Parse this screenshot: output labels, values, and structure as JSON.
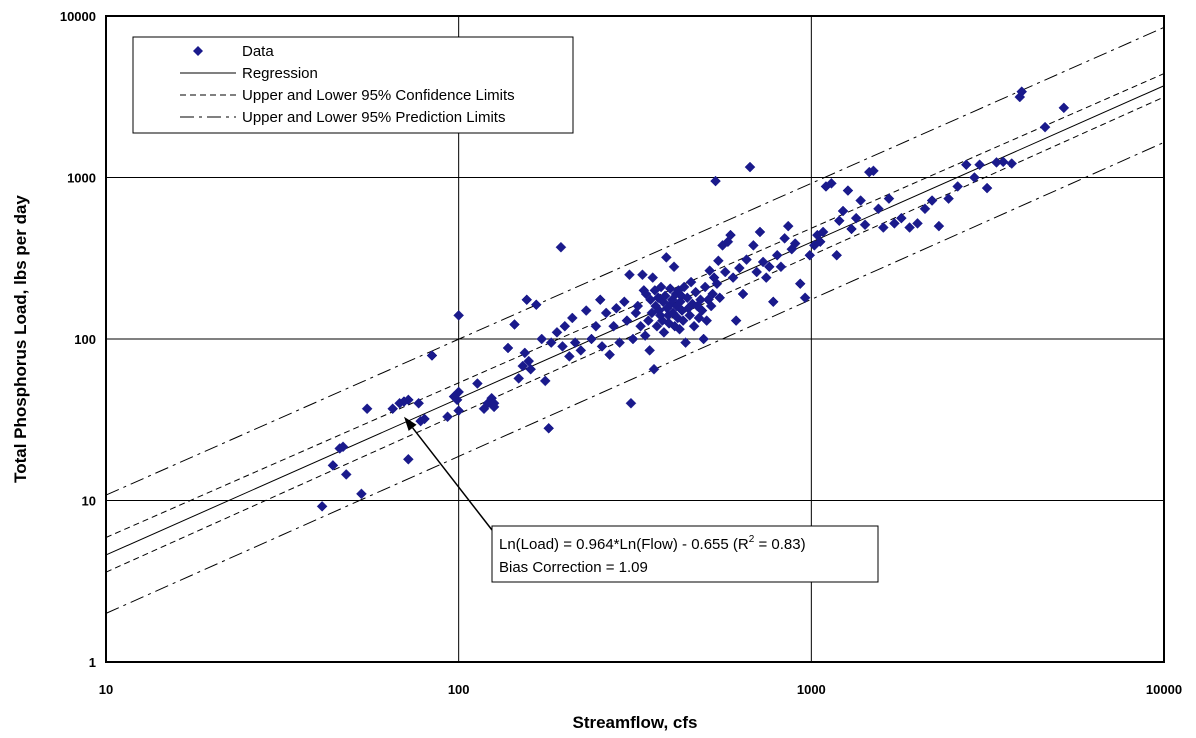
{
  "chart_data": {
    "type": "scatter",
    "title": "",
    "xlabel": "Streamflow, cfs",
    "ylabel": "Total Phosphorus Load, lbs per day",
    "x_scale": "log",
    "y_scale": "log",
    "xlim": [
      10,
      10000
    ],
    "ylim": [
      1,
      10000
    ],
    "x_ticks": [
      "10",
      "100",
      "1000",
      "10000"
    ],
    "y_ticks": [
      "1",
      "10",
      "100",
      "1000",
      "10000"
    ],
    "grid": "major",
    "legend_position": "top-left",
    "legend": [
      {
        "label": "Data",
        "style": "marker"
      },
      {
        "label": "Regression",
        "style": "solid"
      },
      {
        "label": "Upper and Lower 95% Confidence Limits",
        "style": "short-dash"
      },
      {
        "label": "Upper and Lower 95% Prediction Limits",
        "style": "long-dash"
      }
    ],
    "marker_color": "#1a1a8c",
    "regression": {
      "slope": 0.964,
      "intercept": -0.655,
      "bias_correction": 1.09
    },
    "lines": {
      "regression": [
        [
          10,
          4.6
        ],
        [
          10000,
          3700
        ]
      ],
      "confidence_upper": [
        [
          10,
          5.9
        ],
        [
          10000,
          4400
        ]
      ],
      "confidence_lower": [
        [
          10,
          3.6
        ],
        [
          10000,
          3150
        ]
      ],
      "prediction_upper": [
        [
          10,
          10.8
        ],
        [
          10000,
          8500
        ]
      ],
      "prediction_lower": [
        [
          10,
          2.0
        ],
        [
          10000,
          1650
        ]
      ]
    },
    "annotation": {
      "line1_prefix": "Ln(Load) = 0.964*Ln(Flow) - 0.655 (R",
      "line1_sup": "2",
      "line1_suffix": " = 0.83)",
      "line2": "Bias Correction = 1.09",
      "arrow_to": [
        70,
        33
      ]
    },
    "points": [
      [
        41,
        9.2
      ],
      [
        44,
        16.5
      ],
      [
        46,
        21
      ],
      [
        47,
        21.5
      ],
      [
        48,
        14.5
      ],
      [
        53,
        11
      ],
      [
        55,
        37
      ],
      [
        65,
        37
      ],
      [
        68,
        40
      ],
      [
        70,
        41
      ],
      [
        72,
        18
      ],
      [
        72,
        42
      ],
      [
        77,
        40
      ],
      [
        78,
        31
      ],
      [
        80,
        32
      ],
      [
        84,
        79
      ],
      [
        93,
        33
      ],
      [
        97,
        44
      ],
      [
        99,
        42
      ],
      [
        100,
        36
      ],
      [
        100,
        47
      ],
      [
        100,
        140
      ],
      [
        113,
        53
      ],
      [
        118,
        37
      ],
      [
        121,
        40
      ],
      [
        124,
        43
      ],
      [
        126,
        40
      ],
      [
        126,
        38
      ],
      [
        138,
        88
      ],
      [
        144,
        123
      ],
      [
        148,
        57
      ],
      [
        152,
        68
      ],
      [
        154,
        82
      ],
      [
        156,
        175
      ],
      [
        158,
        73
      ],
      [
        160,
        65
      ],
      [
        166,
        163
      ],
      [
        172,
        100
      ],
      [
        176,
        55
      ],
      [
        180,
        28
      ],
      [
        183,
        95
      ],
      [
        190,
        110
      ],
      [
        195,
        370
      ],
      [
        197,
        90
      ],
      [
        200,
        120
      ],
      [
        206,
        78
      ],
      [
        210,
        135
      ],
      [
        214,
        95
      ],
      [
        222,
        85
      ],
      [
        230,
        150
      ],
      [
        238,
        100
      ],
      [
        245,
        120
      ],
      [
        252,
        175
      ],
      [
        255,
        90
      ],
      [
        262,
        145
      ],
      [
        268,
        80
      ],
      [
        275,
        120
      ],
      [
        280,
        155
      ],
      [
        286,
        95
      ],
      [
        295,
        170
      ],
      [
        300,
        130
      ],
      [
        305,
        250
      ],
      [
        308,
        40
      ],
      [
        312,
        100
      ],
      [
        318,
        145
      ],
      [
        322,
        160
      ],
      [
        328,
        120
      ],
      [
        332,
        250
      ],
      [
        335,
        200
      ],
      [
        338,
        105
      ],
      [
        340,
        190
      ],
      [
        345,
        130
      ],
      [
        348,
        85
      ],
      [
        350,
        175
      ],
      [
        353,
        145
      ],
      [
        355,
        240
      ],
      [
        358,
        65
      ],
      [
        360,
        200
      ],
      [
        362,
        160
      ],
      [
        365,
        120
      ],
      [
        368,
        180
      ],
      [
        370,
        150
      ],
      [
        373,
        140
      ],
      [
        375,
        210
      ],
      [
        378,
        130
      ],
      [
        380,
        170
      ],
      [
        382,
        110
      ],
      [
        385,
        185
      ],
      [
        388,
        320
      ],
      [
        390,
        155
      ],
      [
        393,
        140
      ],
      [
        395,
        125
      ],
      [
        398,
        205
      ],
      [
        400,
        165
      ],
      [
        403,
        175
      ],
      [
        405,
        145
      ],
      [
        408,
        280
      ],
      [
        410,
        120
      ],
      [
        413,
        190
      ],
      [
        415,
        160
      ],
      [
        418,
        135
      ],
      [
        420,
        200
      ],
      [
        423,
        115
      ],
      [
        425,
        170
      ],
      [
        428,
        185
      ],
      [
        430,
        150
      ],
      [
        433,
        130
      ],
      [
        436,
        210
      ],
      [
        440,
        95
      ],
      [
        445,
        180
      ],
      [
        448,
        155
      ],
      [
        452,
        140
      ],
      [
        456,
        225
      ],
      [
        460,
        165
      ],
      [
        465,
        120
      ],
      [
        470,
        195
      ],
      [
        475,
        160
      ],
      [
        480,
        135
      ],
      [
        485,
        175
      ],
      [
        490,
        150
      ],
      [
        495,
        100
      ],
      [
        500,
        210
      ],
      [
        505,
        130
      ],
      [
        510,
        175
      ],
      [
        515,
        265
      ],
      [
        520,
        160
      ],
      [
        525,
        190
      ],
      [
        530,
        240
      ],
      [
        535,
        950
      ],
      [
        540,
        220
      ],
      [
        545,
        305
      ],
      [
        550,
        180
      ],
      [
        560,
        380
      ],
      [
        570,
        260
      ],
      [
        580,
        400
      ],
      [
        590,
        440
      ],
      [
        600,
        240
      ],
      [
        612,
        130
      ],
      [
        625,
        275
      ],
      [
        640,
        190
      ],
      [
        655,
        310
      ],
      [
        670,
        1160
      ],
      [
        685,
        380
      ],
      [
        700,
        260
      ],
      [
        715,
        460
      ],
      [
        730,
        300
      ],
      [
        745,
        240
      ],
      [
        760,
        280
      ],
      [
        780,
        170
      ],
      [
        800,
        330
      ],
      [
        820,
        280
      ],
      [
        840,
        420
      ],
      [
        860,
        500
      ],
      [
        880,
        360
      ],
      [
        900,
        390
      ],
      [
        930,
        220
      ],
      [
        960,
        180
      ],
      [
        990,
        330
      ],
      [
        1020,
        380
      ],
      [
        1040,
        440
      ],
      [
        1060,
        400
      ],
      [
        1080,
        460
      ],
      [
        1100,
        880
      ],
      [
        1140,
        920
      ],
      [
        1180,
        330
      ],
      [
        1200,
        540
      ],
      [
        1230,
        620
      ],
      [
        1270,
        830
      ],
      [
        1300,
        480
      ],
      [
        1340,
        560
      ],
      [
        1380,
        720
      ],
      [
        1420,
        510
      ],
      [
        1460,
        1080
      ],
      [
        1500,
        1100
      ],
      [
        1550,
        640
      ],
      [
        1600,
        490
      ],
      [
        1660,
        740
      ],
      [
        1720,
        520
      ],
      [
        1800,
        560
      ],
      [
        1900,
        490
      ],
      [
        2000,
        520
      ],
      [
        2100,
        640
      ],
      [
        2200,
        720
      ],
      [
        2300,
        500
      ],
      [
        2450,
        740
      ],
      [
        2600,
        880
      ],
      [
        2750,
        1200
      ],
      [
        2900,
        1000
      ],
      [
        3000,
        1200
      ],
      [
        3150,
        860
      ],
      [
        3350,
        1240
      ],
      [
        3500,
        1250
      ],
      [
        3700,
        1220
      ],
      [
        3900,
        3150
      ],
      [
        3950,
        3400
      ],
      [
        4600,
        2050
      ],
      [
        5200,
        2700
      ]
    ]
  }
}
